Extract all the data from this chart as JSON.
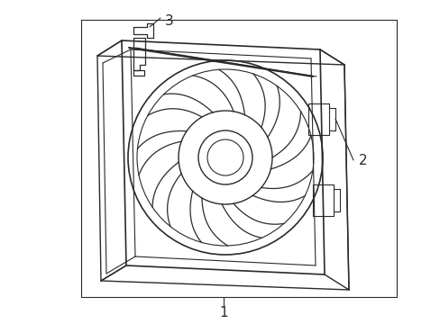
{
  "bg_color": "#ffffff",
  "line_color": "#2a2a2a",
  "line_width": 1.0,
  "label1_text": "1",
  "label2_text": "2",
  "label3_text": "3",
  "num_blades": 9
}
